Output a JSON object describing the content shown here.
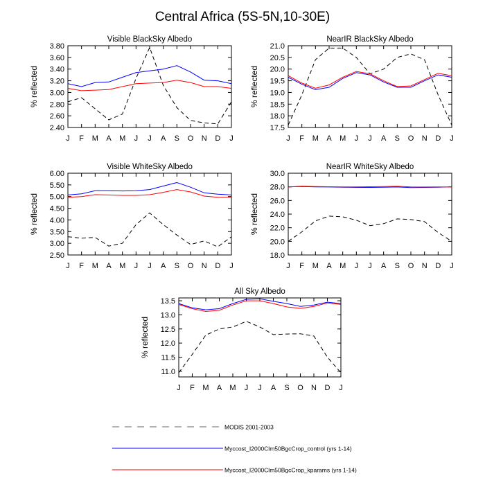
{
  "figure_title": "Central Africa (5S-5N,10-30E)",
  "colors": {
    "modis": "#000000",
    "control": "#0000ff",
    "kparams": "#ff0000",
    "legend_modis": "#999999"
  },
  "legend": [
    {
      "key": "modis",
      "label": "MODIS 2001-2003"
    },
    {
      "key": "control",
      "label": "Myccost_I2000Clm50BgcCrop_control (yrs 1-14)"
    },
    {
      "key": "kparams",
      "label": "Myccost_I2000Clm50BgcCrop_kparams (yrs 1-14)"
    }
  ],
  "chart_data": [
    {
      "type": "line",
      "title": "Visible BlackSky Albedo",
      "ylabel": "% reflected",
      "categories": [
        "J",
        "F",
        "M",
        "A",
        "M",
        "J",
        "J",
        "A",
        "S",
        "O",
        "N",
        "D",
        "J"
      ],
      "ylim": [
        2.4,
        3.8
      ],
      "yticks": [
        "2.40",
        "2.60",
        "2.80",
        "3.00",
        "3.20",
        "3.40",
        "3.60",
        "3.80"
      ],
      "series": [
        {
          "name": "MODIS 2001-2003",
          "key": "modis",
          "style": "dashed",
          "values": [
            2.84,
            2.91,
            2.72,
            2.53,
            2.63,
            3.24,
            3.77,
            3.12,
            2.74,
            2.52,
            2.48,
            2.46,
            2.84
          ]
        },
        {
          "name": "Myccost_I2000Clm50BgcCrop_control (yrs 1-14)",
          "key": "control",
          "style": "solid",
          "values": [
            3.15,
            3.1,
            3.17,
            3.18,
            3.26,
            3.34,
            3.37,
            3.4,
            3.46,
            3.35,
            3.21,
            3.2,
            3.15
          ]
        },
        {
          "name": "Myccost_I2000Clm50BgcCrop_kparams (yrs 1-14)",
          "key": "kparams",
          "style": "solid",
          "values": [
            3.07,
            3.03,
            3.04,
            3.05,
            3.1,
            3.15,
            3.16,
            3.17,
            3.21,
            3.17,
            3.1,
            3.1,
            3.07
          ]
        }
      ]
    },
    {
      "type": "line",
      "title": "NearIR BlackSky Albedo",
      "ylabel": "% reflected",
      "categories": [
        "J",
        "F",
        "M",
        "A",
        "M",
        "J",
        "J",
        "A",
        "S",
        "O",
        "N",
        "D",
        "J"
      ],
      "ylim": [
        17.5,
        21.0
      ],
      "yticks": [
        "17.5",
        "18.0",
        "18.5",
        "19.0",
        "19.5",
        "20.0",
        "20.5",
        "21.0"
      ],
      "series": [
        {
          "name": "MODIS 2001-2003",
          "key": "modis",
          "style": "dashed",
          "values": [
            17.6,
            18.9,
            20.4,
            20.9,
            20.9,
            20.5,
            19.8,
            20.0,
            20.5,
            20.65,
            20.4,
            18.9,
            17.6
          ]
        },
        {
          "name": "Myccost_I2000Clm50BgcCrop_control (yrs 1-14)",
          "key": "control",
          "style": "solid",
          "values": [
            19.65,
            19.35,
            19.12,
            19.22,
            19.6,
            19.85,
            19.75,
            19.45,
            19.22,
            19.22,
            19.5,
            19.75,
            19.65
          ]
        },
        {
          "name": "Myccost_I2000Clm50BgcCrop_kparams (yrs 1-14)",
          "key": "kparams",
          "style": "solid",
          "values": [
            19.72,
            19.4,
            19.18,
            19.32,
            19.65,
            19.9,
            19.8,
            19.5,
            19.25,
            19.28,
            19.55,
            19.82,
            19.72
          ]
        }
      ]
    },
    {
      "type": "line",
      "title": "Visible WhiteSky Albedo",
      "ylabel": "% reflected",
      "categories": [
        "J",
        "F",
        "M",
        "A",
        "M",
        "J",
        "J",
        "A",
        "S",
        "O",
        "N",
        "D",
        "J"
      ],
      "ylim": [
        2.5,
        6.0
      ],
      "yticks": [
        "2.50",
        "3.00",
        "3.50",
        "4.00",
        "4.50",
        "5.00",
        "5.50",
        "6.00"
      ],
      "series": [
        {
          "name": "MODIS 2001-2003",
          "key": "modis",
          "style": "dashed",
          "values": [
            3.28,
            3.22,
            3.25,
            2.88,
            3.0,
            3.8,
            4.3,
            3.8,
            3.35,
            2.95,
            3.1,
            2.85,
            3.28
          ]
        },
        {
          "name": "Myccost_I2000Clm50BgcCrop_control (yrs 1-14)",
          "key": "control",
          "style": "solid",
          "values": [
            5.07,
            5.12,
            5.25,
            5.25,
            5.24,
            5.25,
            5.3,
            5.45,
            5.6,
            5.4,
            5.16,
            5.1,
            5.07
          ]
        },
        {
          "name": "Myccost_I2000Clm50BgcCrop_kparams (yrs 1-14)",
          "key": "kparams",
          "style": "solid",
          "values": [
            4.97,
            5.0,
            5.08,
            5.07,
            5.05,
            5.05,
            5.08,
            5.18,
            5.3,
            5.2,
            5.02,
            4.97,
            4.97
          ]
        }
      ]
    },
    {
      "type": "line",
      "title": "NearIR WhiteSky Albedo",
      "ylabel": "% reflected",
      "categories": [
        "J",
        "F",
        "M",
        "A",
        "M",
        "J",
        "J",
        "A",
        "S",
        "O",
        "N",
        "D",
        "J"
      ],
      "ylim": [
        18.0,
        30.0
      ],
      "yticks": [
        "18.0",
        "20.0",
        "22.0",
        "24.0",
        "26.0",
        "28.0",
        "30.0"
      ],
      "series": [
        {
          "name": "MODIS 2001-2003",
          "key": "modis",
          "style": "dashed",
          "values": [
            20.0,
            21.4,
            23.0,
            23.7,
            23.6,
            23.1,
            22.3,
            22.6,
            23.3,
            23.2,
            22.9,
            21.3,
            20.0
          ]
        },
        {
          "name": "Myccost_I2000Clm50BgcCrop_control (yrs 1-14)",
          "key": "control",
          "style": "solid",
          "values": [
            28.0,
            28.05,
            28.0,
            27.98,
            27.95,
            27.92,
            27.92,
            27.95,
            27.98,
            27.9,
            27.92,
            27.95,
            28.0
          ]
        },
        {
          "name": "Myccost_I2000Clm50BgcCrop_kparams (yrs 1-14)",
          "key": "kparams",
          "style": "solid",
          "values": [
            27.98,
            28.1,
            28.05,
            28.02,
            28.0,
            28.0,
            28.02,
            28.05,
            28.08,
            28.0,
            27.98,
            28.0,
            27.98
          ]
        }
      ]
    },
    {
      "type": "line",
      "title": "All Sky Albedo",
      "ylabel": "% reflected",
      "categories": [
        "J",
        "F",
        "M",
        "A",
        "M",
        "J",
        "J",
        "A",
        "S",
        "O",
        "N",
        "D",
        "J"
      ],
      "ylim": [
        10.8,
        13.6
      ],
      "yticks": [
        "11.0",
        "11.5",
        "12.0",
        "12.5",
        "13.0",
        "13.5"
      ],
      "series": [
        {
          "name": "MODIS 2001-2003",
          "key": "modis",
          "style": "dashed",
          "values": [
            10.95,
            11.6,
            12.28,
            12.5,
            12.57,
            12.77,
            12.57,
            12.3,
            12.32,
            12.33,
            12.25,
            11.5,
            10.95
          ]
        },
        {
          "name": "Myccost_I2000Clm50BgcCrop_control (yrs 1-14)",
          "key": "control",
          "style": "solid",
          "values": [
            13.4,
            13.25,
            13.18,
            13.22,
            13.4,
            13.55,
            13.57,
            13.48,
            13.4,
            13.3,
            13.35,
            13.45,
            13.4
          ]
        },
        {
          "name": "Myccost_I2000Clm50BgcCrop_kparams (yrs 1-14)",
          "key": "kparams",
          "style": "solid",
          "values": [
            13.37,
            13.22,
            13.12,
            13.16,
            13.35,
            13.5,
            13.5,
            13.4,
            13.28,
            13.23,
            13.3,
            13.42,
            13.37
          ]
        }
      ]
    }
  ]
}
